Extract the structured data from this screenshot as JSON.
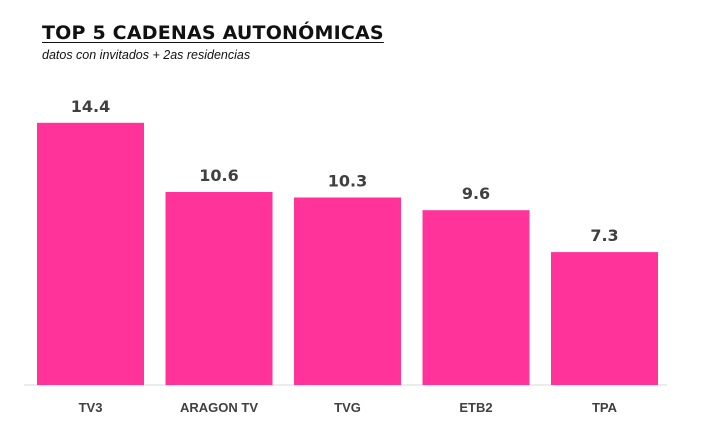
{
  "chart_data": {
    "type": "bar",
    "title": "TOP 5 CADENAS AUTONÓMICAS",
    "subtitle": "datos con invitados + 2as residencias",
    "categories": [
      "TV3",
      "ARAGON TV",
      "TVG",
      "ETB2",
      "TPA"
    ],
    "values": [
      14.4,
      10.6,
      10.3,
      9.6,
      7.3
    ],
    "value_labels": [
      "14.4",
      "10.6",
      "10.3",
      "9.6",
      "7.3"
    ],
    "xlabel": "",
    "ylabel": "",
    "ylim": [
      0,
      15.6
    ],
    "grid": false,
    "bar_color": "#ff3399"
  }
}
